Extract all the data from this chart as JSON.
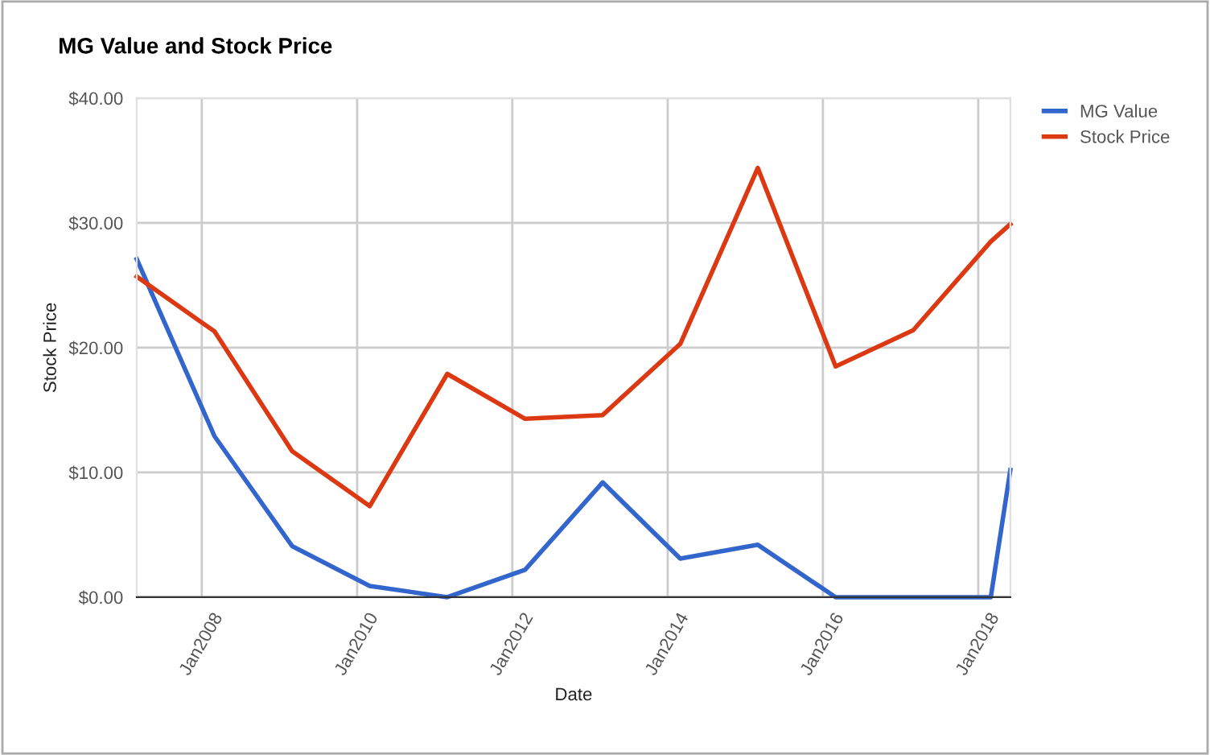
{
  "chart_data": {
    "type": "line",
    "title": "MG Value and Stock Price",
    "xlabel": "Date",
    "ylabel": "Stock Price",
    "x": [
      "2007-03",
      "2008-03",
      "2009-03",
      "2010-03",
      "2011-03",
      "2012-03",
      "2013-03",
      "2014-03",
      "2015-03",
      "2016-03",
      "2017-03",
      "2018-03",
      "2018-06"
    ],
    "series": [
      {
        "name": "MG Value",
        "color": "#3366cc",
        "values": [
          27.1,
          12.9,
          4.1,
          0.9,
          0,
          2.2,
          9.2,
          3.1,
          4.2,
          0,
          0,
          0,
          10.2
        ]
      },
      {
        "name": "Stock Price",
        "color": "#dc3912",
        "values": [
          25.7,
          21.3,
          11.7,
          7.3,
          17.9,
          14.3,
          14.6,
          20.3,
          34.4,
          18.5,
          21.4,
          28.5,
          29.9
        ]
      }
    ],
    "xlim": [
      "2007-03",
      "2018-06"
    ],
    "xticks": [
      {
        "value": "2008-01",
        "label": "Jan2008"
      },
      {
        "value": "2010-01",
        "label": "Jan2010"
      },
      {
        "value": "2012-01",
        "label": "Jan2012"
      },
      {
        "value": "2014-01",
        "label": "Jan2014"
      },
      {
        "value": "2016-01",
        "label": "Jan2016"
      },
      {
        "value": "2018-01",
        "label": "Jan2018"
      }
    ],
    "ylim": [
      0,
      40
    ],
    "yticks": [
      {
        "value": 0,
        "label": "$0.00"
      },
      {
        "value": 10,
        "label": "$10.00"
      },
      {
        "value": 20,
        "label": "$20.00"
      },
      {
        "value": 30,
        "label": "$30.00"
      },
      {
        "value": 40,
        "label": "$40.00"
      }
    ],
    "grid": true,
    "legend": "top right",
    "marker": "none",
    "line_style": "solid"
  }
}
